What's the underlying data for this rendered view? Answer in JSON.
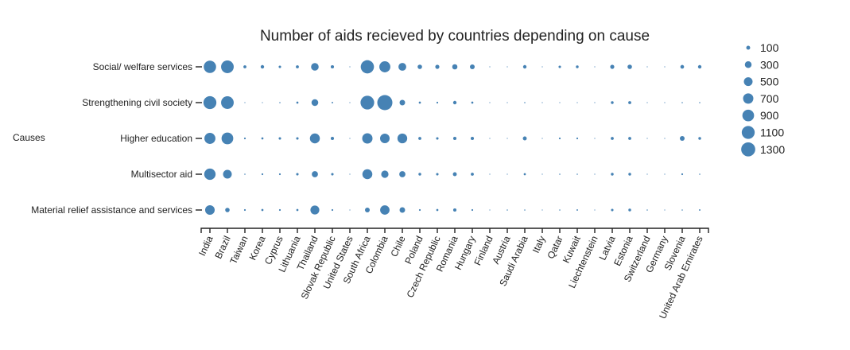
{
  "chart_data": {
    "type": "scatter",
    "title": "Number of aids recieved by countries depending on cause",
    "ylabel": "Causes",
    "xlabel": "",
    "marker_color": "#4682b4",
    "categories": [
      "India",
      "Brazil",
      "Taiwan",
      "Korea",
      "Cyprus",
      "Lithuania",
      "Thailand",
      "Slovak Republic",
      "United States",
      "South Africa",
      "Colombia",
      "Chile",
      "Poland",
      "Czech Republic",
      "Romania",
      "Hungary",
      "Finland",
      "Austria",
      "Saudi Arabia",
      "Italy",
      "Qatar",
      "Kuwait",
      "Liechtenstein",
      "Latvia",
      "Estonia",
      "Switzerland",
      "Germany",
      "Slovenia",
      "United Arab Emirates"
    ],
    "causes": [
      "Social/ welfare services",
      "Strengthening civil society",
      "Higher education",
      "Multisector aid",
      "Material relief assistance and services"
    ],
    "series": [
      {
        "name": "Social/ welfare services",
        "values": [
          1000,
          1050,
          60,
          80,
          40,
          60,
          380,
          70,
          5,
          1150,
          800,
          400,
          130,
          110,
          180,
          150,
          5,
          5,
          80,
          5,
          40,
          50,
          5,
          110,
          130,
          5,
          5,
          90,
          80
        ]
      },
      {
        "name": "Strengthening civil society",
        "values": [
          1100,
          1050,
          5,
          5,
          10,
          30,
          300,
          15,
          5,
          1230,
          1500,
          200,
          30,
          20,
          80,
          30,
          5,
          5,
          10,
          5,
          5,
          5,
          5,
          50,
          60,
          5,
          5,
          10,
          10
        ]
      },
      {
        "name": "Higher education",
        "values": [
          800,
          900,
          20,
          30,
          40,
          40,
          650,
          70,
          5,
          700,
          600,
          630,
          60,
          40,
          70,
          70,
          5,
          5,
          100,
          5,
          20,
          20,
          5,
          60,
          60,
          5,
          5,
          150,
          50
        ]
      },
      {
        "name": "Multisector aid",
        "values": [
          850,
          500,
          10,
          20,
          20,
          40,
          250,
          40,
          5,
          650,
          350,
          250,
          50,
          40,
          100,
          60,
          5,
          5,
          30,
          5,
          10,
          10,
          5,
          50,
          50,
          5,
          5,
          20,
          10
        ]
      },
      {
        "name": "Material relief assistance and services",
        "values": [
          600,
          130,
          20,
          30,
          20,
          30,
          520,
          20,
          5,
          150,
          580,
          200,
          20,
          30,
          70,
          20,
          5,
          10,
          10,
          5,
          10,
          15,
          5,
          40,
          50,
          10,
          5,
          10,
          15
        ]
      }
    ],
    "legend": {
      "values": [
        100,
        300,
        500,
        700,
        900,
        1100,
        1300
      ],
      "labels": [
        "100",
        "300",
        "500",
        "700",
        "900",
        "1100",
        "1300"
      ],
      "placement": "right"
    },
    "grid": false
  }
}
